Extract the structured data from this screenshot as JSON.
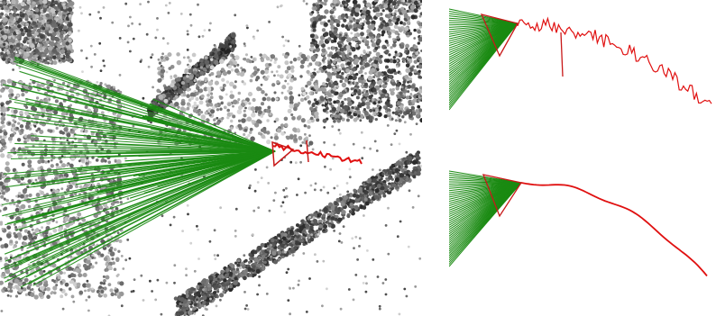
{
  "figure": {
    "panels": [
      {
        "id": "main-view",
        "description_icon": "point-cloud-reconstruction"
      },
      {
        "id": "top-right-view",
        "description_icon": "noisy-trajectory"
      },
      {
        "id": "bottom-right-view",
        "description_icon": "smoothed-trajectory"
      }
    ],
    "colors": {
      "camera_rays": "#1a8a12",
      "trajectory": "#e01010",
      "camera_frustum": "#c81818",
      "points_dark": "#2a2a2a",
      "points_gray": "#8a8a8a",
      "points_light": "#c8c8c8"
    }
  }
}
